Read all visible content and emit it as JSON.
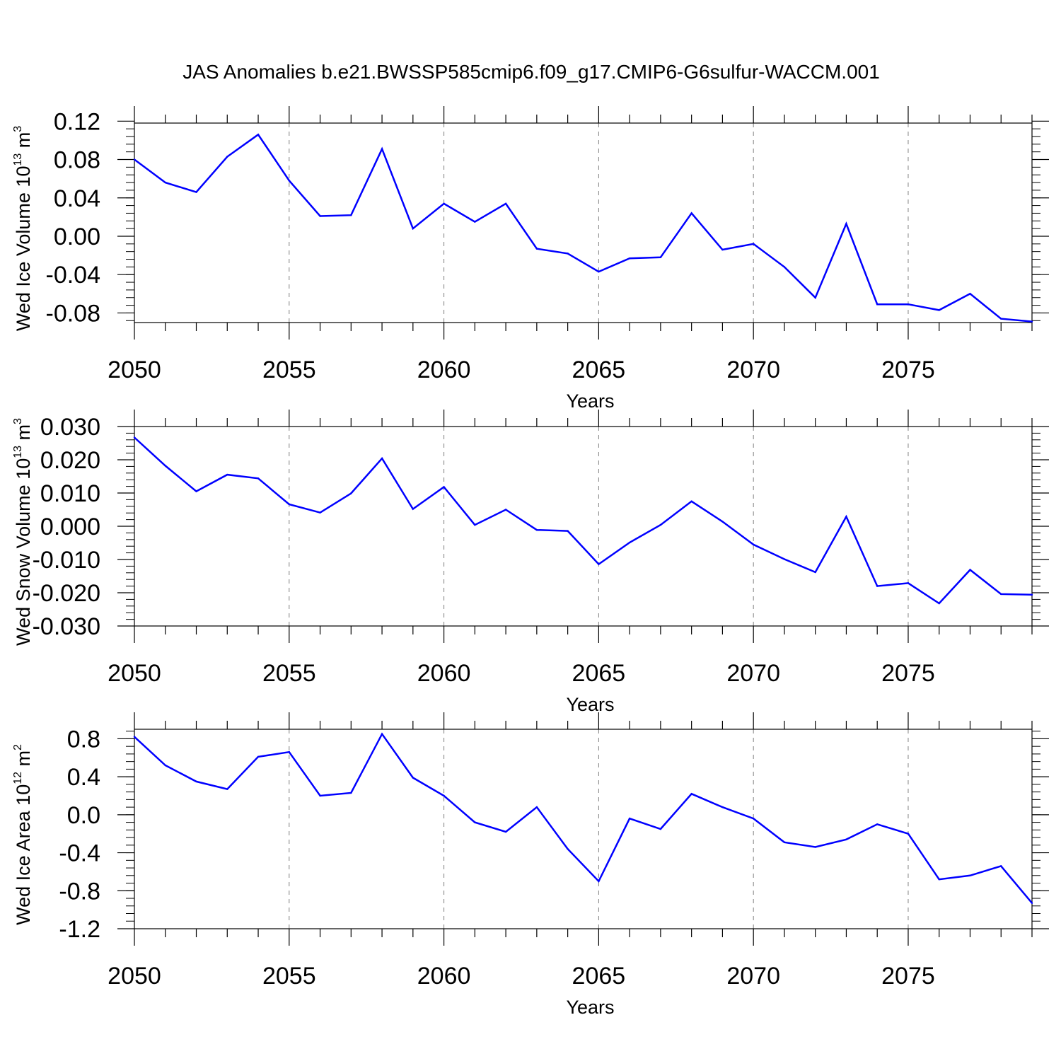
{
  "figure": {
    "title": "JAS Anomalies b.e21.BWSSP585cmip6.f09_g17.CMIP6-G6sulfur-WACCM.001"
  },
  "colors": {
    "series_line": "#0000ff",
    "axis": "#000000",
    "grid": "#808080"
  },
  "chart_data": [
    {
      "type": "line",
      "xlabel": "Years",
      "ylabel": {
        "base": "Wed Ice Volume 10",
        "exp": "13",
        "unit": " m",
        "unit_exp": "3"
      },
      "xlim": [
        2050,
        2079
      ],
      "ylim": [
        -0.09,
        0.118
      ],
      "x_ticks": [
        "2050",
        "2055",
        "2060",
        "2065",
        "2070",
        "2075"
      ],
      "y_ticks": [
        "0.12",
        "0.08",
        "0.04",
        "0.00",
        "-0.04",
        "-0.08"
      ],
      "y_tick_values": [
        0.12,
        0.08,
        0.04,
        0.0,
        -0.04,
        -0.08
      ],
      "y_minor_step": 0.008,
      "grid": "vertical dashed at major x ticks",
      "x": [
        2050,
        2051,
        2052,
        2053,
        2054,
        2055,
        2056,
        2057,
        2058,
        2059,
        2060,
        2061,
        2062,
        2063,
        2064,
        2065,
        2066,
        2067,
        2068,
        2069,
        2070,
        2071,
        2072,
        2073,
        2074,
        2075,
        2076,
        2077,
        2078,
        2079
      ],
      "series": [
        {
          "values": [
            0.08,
            0.056,
            0.046,
            0.083,
            0.106,
            0.058,
            0.021,
            0.022,
            0.091,
            0.008,
            0.034,
            0.015,
            0.034,
            -0.013,
            -0.018,
            -0.037,
            -0.023,
            -0.022,
            0.024,
            -0.014,
            -0.008,
            -0.032,
            -0.064,
            0.013,
            -0.071,
            -0.071,
            -0.077,
            -0.06,
            -0.086,
            -0.089
          ]
        }
      ]
    },
    {
      "type": "line",
      "xlabel": "Years",
      "ylabel": {
        "base": "Wed Snow Volume 10",
        "exp": "13",
        "unit": " m",
        "unit_exp": "3"
      },
      "xlim": [
        2050,
        2079
      ],
      "ylim": [
        -0.03,
        0.03
      ],
      "x_ticks": [
        "2050",
        "2055",
        "2060",
        "2065",
        "2070",
        "2075"
      ],
      "y_ticks": [
        "0.030",
        "0.020",
        "0.010",
        "0.000",
        "-0.010",
        "-0.020",
        "-0.030"
      ],
      "y_tick_values": [
        0.03,
        0.02,
        0.01,
        0.0,
        -0.01,
        -0.02,
        -0.03
      ],
      "y_minor_step": 0.002,
      "grid": "vertical dashed at major x ticks",
      "x": [
        2050,
        2051,
        2052,
        2053,
        2054,
        2055,
        2056,
        2057,
        2058,
        2059,
        2060,
        2061,
        2062,
        2063,
        2064,
        2065,
        2066,
        2067,
        2068,
        2069,
        2070,
        2071,
        2072,
        2073,
        2074,
        2075,
        2076,
        2077,
        2078,
        2079
      ],
      "series": [
        {
          "values": [
            0.0267,
            0.0182,
            0.0105,
            0.0155,
            0.0144,
            0.0066,
            0.0041,
            0.0099,
            0.0204,
            0.0052,
            0.0118,
            0.0004,
            0.005,
            -0.0011,
            -0.0014,
            -0.0114,
            -0.0049,
            0.0004,
            0.0075,
            0.0014,
            -0.0055,
            -0.0099,
            -0.0138,
            0.0029,
            -0.018,
            -0.0171,
            -0.0232,
            -0.0131,
            -0.0204,
            -0.0206
          ]
        }
      ]
    },
    {
      "type": "line",
      "xlabel": "Years",
      "ylabel": {
        "base": "Wed Ice Area 10",
        "exp": "12",
        "unit": " m",
        "unit_exp": "2"
      },
      "xlim": [
        2050,
        2079
      ],
      "ylim": [
        -1.2,
        0.9
      ],
      "x_ticks": [
        "2050",
        "2055",
        "2060",
        "2065",
        "2070",
        "2075"
      ],
      "y_ticks": [
        "0.8",
        "0.4",
        "0.0",
        "-0.4",
        "-0.8",
        "-1.2"
      ],
      "y_tick_values": [
        0.8,
        0.4,
        0.0,
        -0.4,
        -0.8,
        -1.2
      ],
      "y_minor_step": 0.08,
      "grid": "vertical dashed at major x ticks",
      "x": [
        2050,
        2051,
        2052,
        2053,
        2054,
        2055,
        2056,
        2057,
        2058,
        2059,
        2060,
        2061,
        2062,
        2063,
        2064,
        2065,
        2066,
        2067,
        2068,
        2069,
        2070,
        2071,
        2072,
        2073,
        2074,
        2075,
        2076,
        2077,
        2078,
        2079
      ],
      "series": [
        {
          "values": [
            0.82,
            0.52,
            0.35,
            0.27,
            0.61,
            0.66,
            0.2,
            0.23,
            0.85,
            0.39,
            0.2,
            -0.08,
            -0.18,
            0.08,
            -0.36,
            -0.7,
            -0.04,
            -0.15,
            0.22,
            0.08,
            -0.04,
            -0.29,
            -0.34,
            -0.26,
            -0.1,
            -0.2,
            -0.68,
            -0.64,
            -0.54,
            -0.93
          ]
        }
      ]
    }
  ]
}
